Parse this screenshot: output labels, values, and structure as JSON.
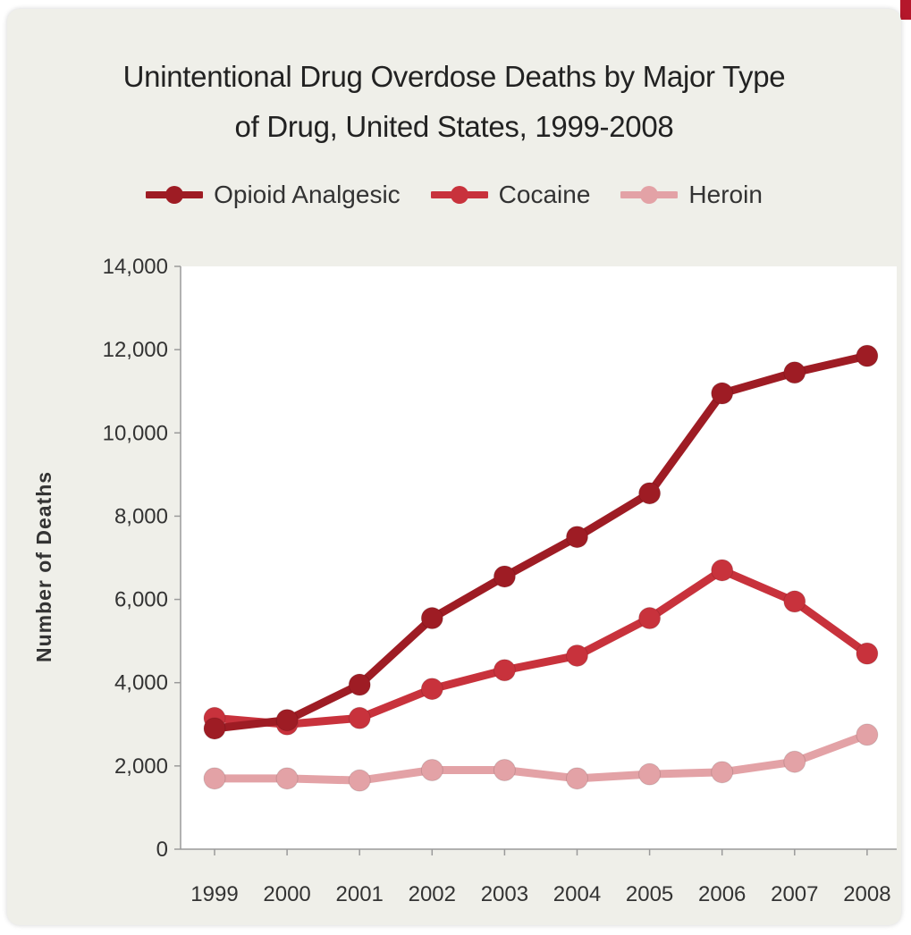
{
  "chart_data": {
    "type": "line",
    "title_lines": [
      "Unintentional Drug Overdose Deaths by Major Type",
      "of Drug, United States, 1999-2008"
    ],
    "xlabel": "",
    "ylabel": "Number of Deaths",
    "x": [
      "1999",
      "2000",
      "2001",
      "2002",
      "2003",
      "2004",
      "2005",
      "2006",
      "2007",
      "2008"
    ],
    "ylim": [
      0,
      14000
    ],
    "yticks": [
      0,
      2000,
      4000,
      6000,
      8000,
      10000,
      12000,
      14000
    ],
    "ytick_labels": [
      "0",
      "2,000",
      "4,000",
      "6,000",
      "8,000",
      "10,000",
      "12,000",
      "14,000"
    ],
    "grid": false,
    "legend_position": "top",
    "series": [
      {
        "name": "Opioid Analgesic",
        "color": "#9e1c24",
        "values": [
          2900,
          3100,
          3950,
          5550,
          6550,
          7500,
          8550,
          10950,
          11450,
          11850
        ]
      },
      {
        "name": "Cocaine",
        "color": "#c8323c",
        "values": [
          3150,
          3000,
          3150,
          3850,
          4300,
          4650,
          5550,
          6700,
          5950,
          4700
        ]
      },
      {
        "name": "Heroin",
        "color": "#e3a2a6",
        "values": [
          1700,
          1700,
          1650,
          1900,
          1900,
          1700,
          1800,
          1850,
          2100,
          2750
        ]
      }
    ]
  }
}
